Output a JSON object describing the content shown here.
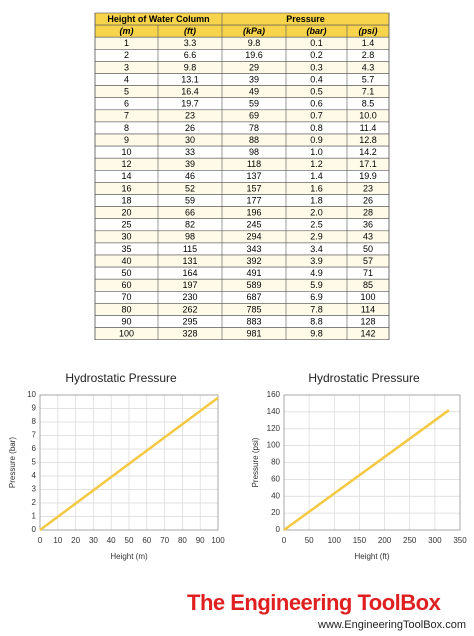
{
  "table": {
    "header": [
      "Height of Water Column",
      "Pressure"
    ],
    "subheader": [
      "(m)",
      "(ft)",
      "(kPa)",
      "(bar)",
      "(psi)"
    ],
    "rows": [
      [
        "1",
        "3.3",
        "9.8",
        "0.1",
        "1.4"
      ],
      [
        "2",
        "6.6",
        "19.6",
        "0.2",
        "2.8"
      ],
      [
        "3",
        "9.8",
        "29",
        "0.3",
        "4.3"
      ],
      [
        "4",
        "13.1",
        "39",
        "0.4",
        "5.7"
      ],
      [
        "5",
        "16.4",
        "49",
        "0.5",
        "7.1"
      ],
      [
        "6",
        "19.7",
        "59",
        "0.6",
        "8.5"
      ],
      [
        "7",
        "23",
        "69",
        "0.7",
        "10.0"
      ],
      [
        "8",
        "26",
        "78",
        "0.8",
        "11.4"
      ],
      [
        "9",
        "30",
        "88",
        "0.9",
        "12.8"
      ],
      [
        "10",
        "33",
        "98",
        "1.0",
        "14.2"
      ],
      [
        "12",
        "39",
        "118",
        "1.2",
        "17.1"
      ],
      [
        "14",
        "46",
        "137",
        "1.4",
        "19.9"
      ],
      [
        "16",
        "52",
        "157",
        "1.6",
        "23"
      ],
      [
        "18",
        "59",
        "177",
        "1.8",
        "26"
      ],
      [
        "20",
        "66",
        "196",
        "2.0",
        "28"
      ],
      [
        "25",
        "82",
        "245",
        "2.5",
        "36"
      ],
      [
        "30",
        "98",
        "294",
        "2.9",
        "43"
      ],
      [
        "35",
        "115",
        "343",
        "3.4",
        "50"
      ],
      [
        "40",
        "131",
        "392",
        "3.9",
        "57"
      ],
      [
        "50",
        "164",
        "491",
        "4.9",
        "71"
      ],
      [
        "60",
        "197",
        "589",
        "5.9",
        "85"
      ],
      [
        "70",
        "230",
        "687",
        "6.9",
        "100"
      ],
      [
        "80",
        "262",
        "785",
        "7.8",
        "114"
      ],
      [
        "90",
        "295",
        "883",
        "8.8",
        "128"
      ],
      [
        "100",
        "328",
        "981",
        "9.8",
        "142"
      ]
    ]
  },
  "chart_data": [
    {
      "type": "line",
      "title": "Hydrostatic Pressure",
      "x_label": "Height (m)",
      "y_label": "Pressure (bar)",
      "x": [
        0,
        100
      ],
      "values": [
        0,
        9.8
      ],
      "color": "#f5c842",
      "xlim": [
        0,
        100
      ],
      "xticks": [
        0,
        10,
        20,
        30,
        40,
        50,
        60,
        70,
        80,
        90,
        100
      ],
      "ylim": [
        0,
        10
      ],
      "yticks": [
        0,
        1,
        2,
        3,
        4,
        5,
        6,
        7,
        8,
        9,
        10
      ],
      "grid": true
    },
    {
      "type": "line",
      "title": "Hydrostatic Pressure",
      "x_label": "Height (ft)",
      "y_label": "Pressure (psi)",
      "x": [
        0,
        328
      ],
      "values": [
        0,
        142
      ],
      "color": "#f5c842",
      "xlim": [
        0,
        350
      ],
      "xticks": [
        0,
        50,
        100,
        150,
        200,
        250,
        300,
        350
      ],
      "ylim": [
        0,
        160
      ],
      "yticks": [
        0,
        20,
        40,
        60,
        80,
        100,
        120,
        140,
        160
      ],
      "grid": true
    }
  ],
  "footer": {
    "logo": "The Engineering ToolBox",
    "url": "www.EngineeringToolBox.com"
  }
}
